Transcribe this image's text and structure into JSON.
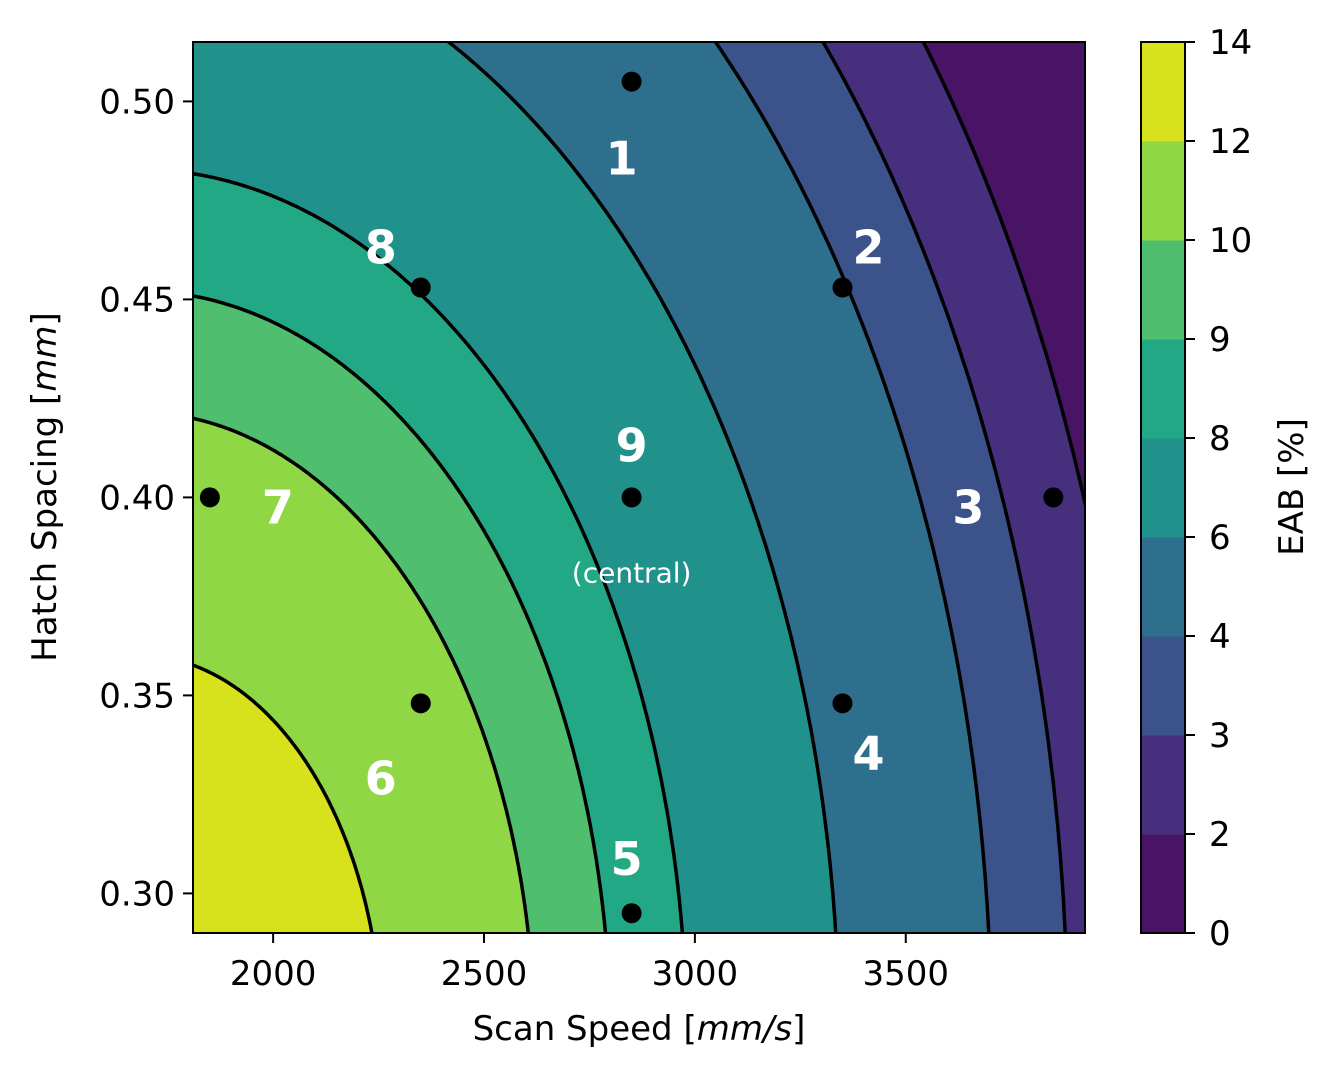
{
  "chart_data": {
    "type": "contour",
    "xlabel": "Scan Speed [mm/s]",
    "xlabel_parts": [
      "Scan Speed [",
      "mm/s",
      "]"
    ],
    "ylabel": "Hatch Spacing [mm]",
    "ylabel_parts": [
      "Hatch Spacing [",
      "mm",
      "]"
    ],
    "xlim": [
      1810,
      3925
    ],
    "ylim": [
      0.29,
      0.515
    ],
    "xticks": [
      2000,
      2500,
      3000,
      3500
    ],
    "xtick_labels": [
      "2000",
      "2500",
      "3000",
      "3500"
    ],
    "yticks": [
      0.3,
      0.35,
      0.4,
      0.45,
      0.5
    ],
    "ytick_labels": [
      "0.30",
      "0.35",
      "0.40",
      "0.45",
      "0.50"
    ],
    "colorbar": {
      "label": "EAB [%]",
      "levels": [
        0,
        2,
        3,
        4,
        6,
        8,
        9,
        10,
        12,
        14
      ],
      "tick_labels": [
        "0",
        "2",
        "3",
        "4",
        "6",
        "8",
        "9",
        "10",
        "12",
        "14"
      ],
      "colors": [
        "#440154",
        "#472d7b",
        "#3b528b",
        "#2c728e",
        "#21918c",
        "#28ae80",
        "#5ec962",
        "#addc30",
        "#fde725"
      ],
      "display_colors": [
        "#4a1466",
        "#46307e",
        "#3b528b",
        "#2f6f8e",
        "#21918c",
        "#22a884",
        "#4fbe6e",
        "#8fd744",
        "#d8e21c"
      ]
    },
    "contour_levels": [
      2,
      3,
      4,
      6,
      8,
      9,
      10,
      12
    ],
    "points": [
      {
        "label": "1",
        "x": 2850,
        "y": 0.505
      },
      {
        "label": "2",
        "x": 3350,
        "y": 0.453
      },
      {
        "label": "3",
        "x": 3850,
        "y": 0.4
      },
      {
        "label": "4",
        "x": 3350,
        "y": 0.348
      },
      {
        "label": "5",
        "x": 2850,
        "y": 0.295
      },
      {
        "label": "6",
        "x": 2350,
        "y": 0.348
      },
      {
        "label": "7",
        "x": 1850,
        "y": 0.4
      },
      {
        "label": "8",
        "x": 2350,
        "y": 0.453
      },
      {
        "label": "9",
        "x": 2850,
        "y": 0.4
      }
    ],
    "annotation": "(central)"
  }
}
